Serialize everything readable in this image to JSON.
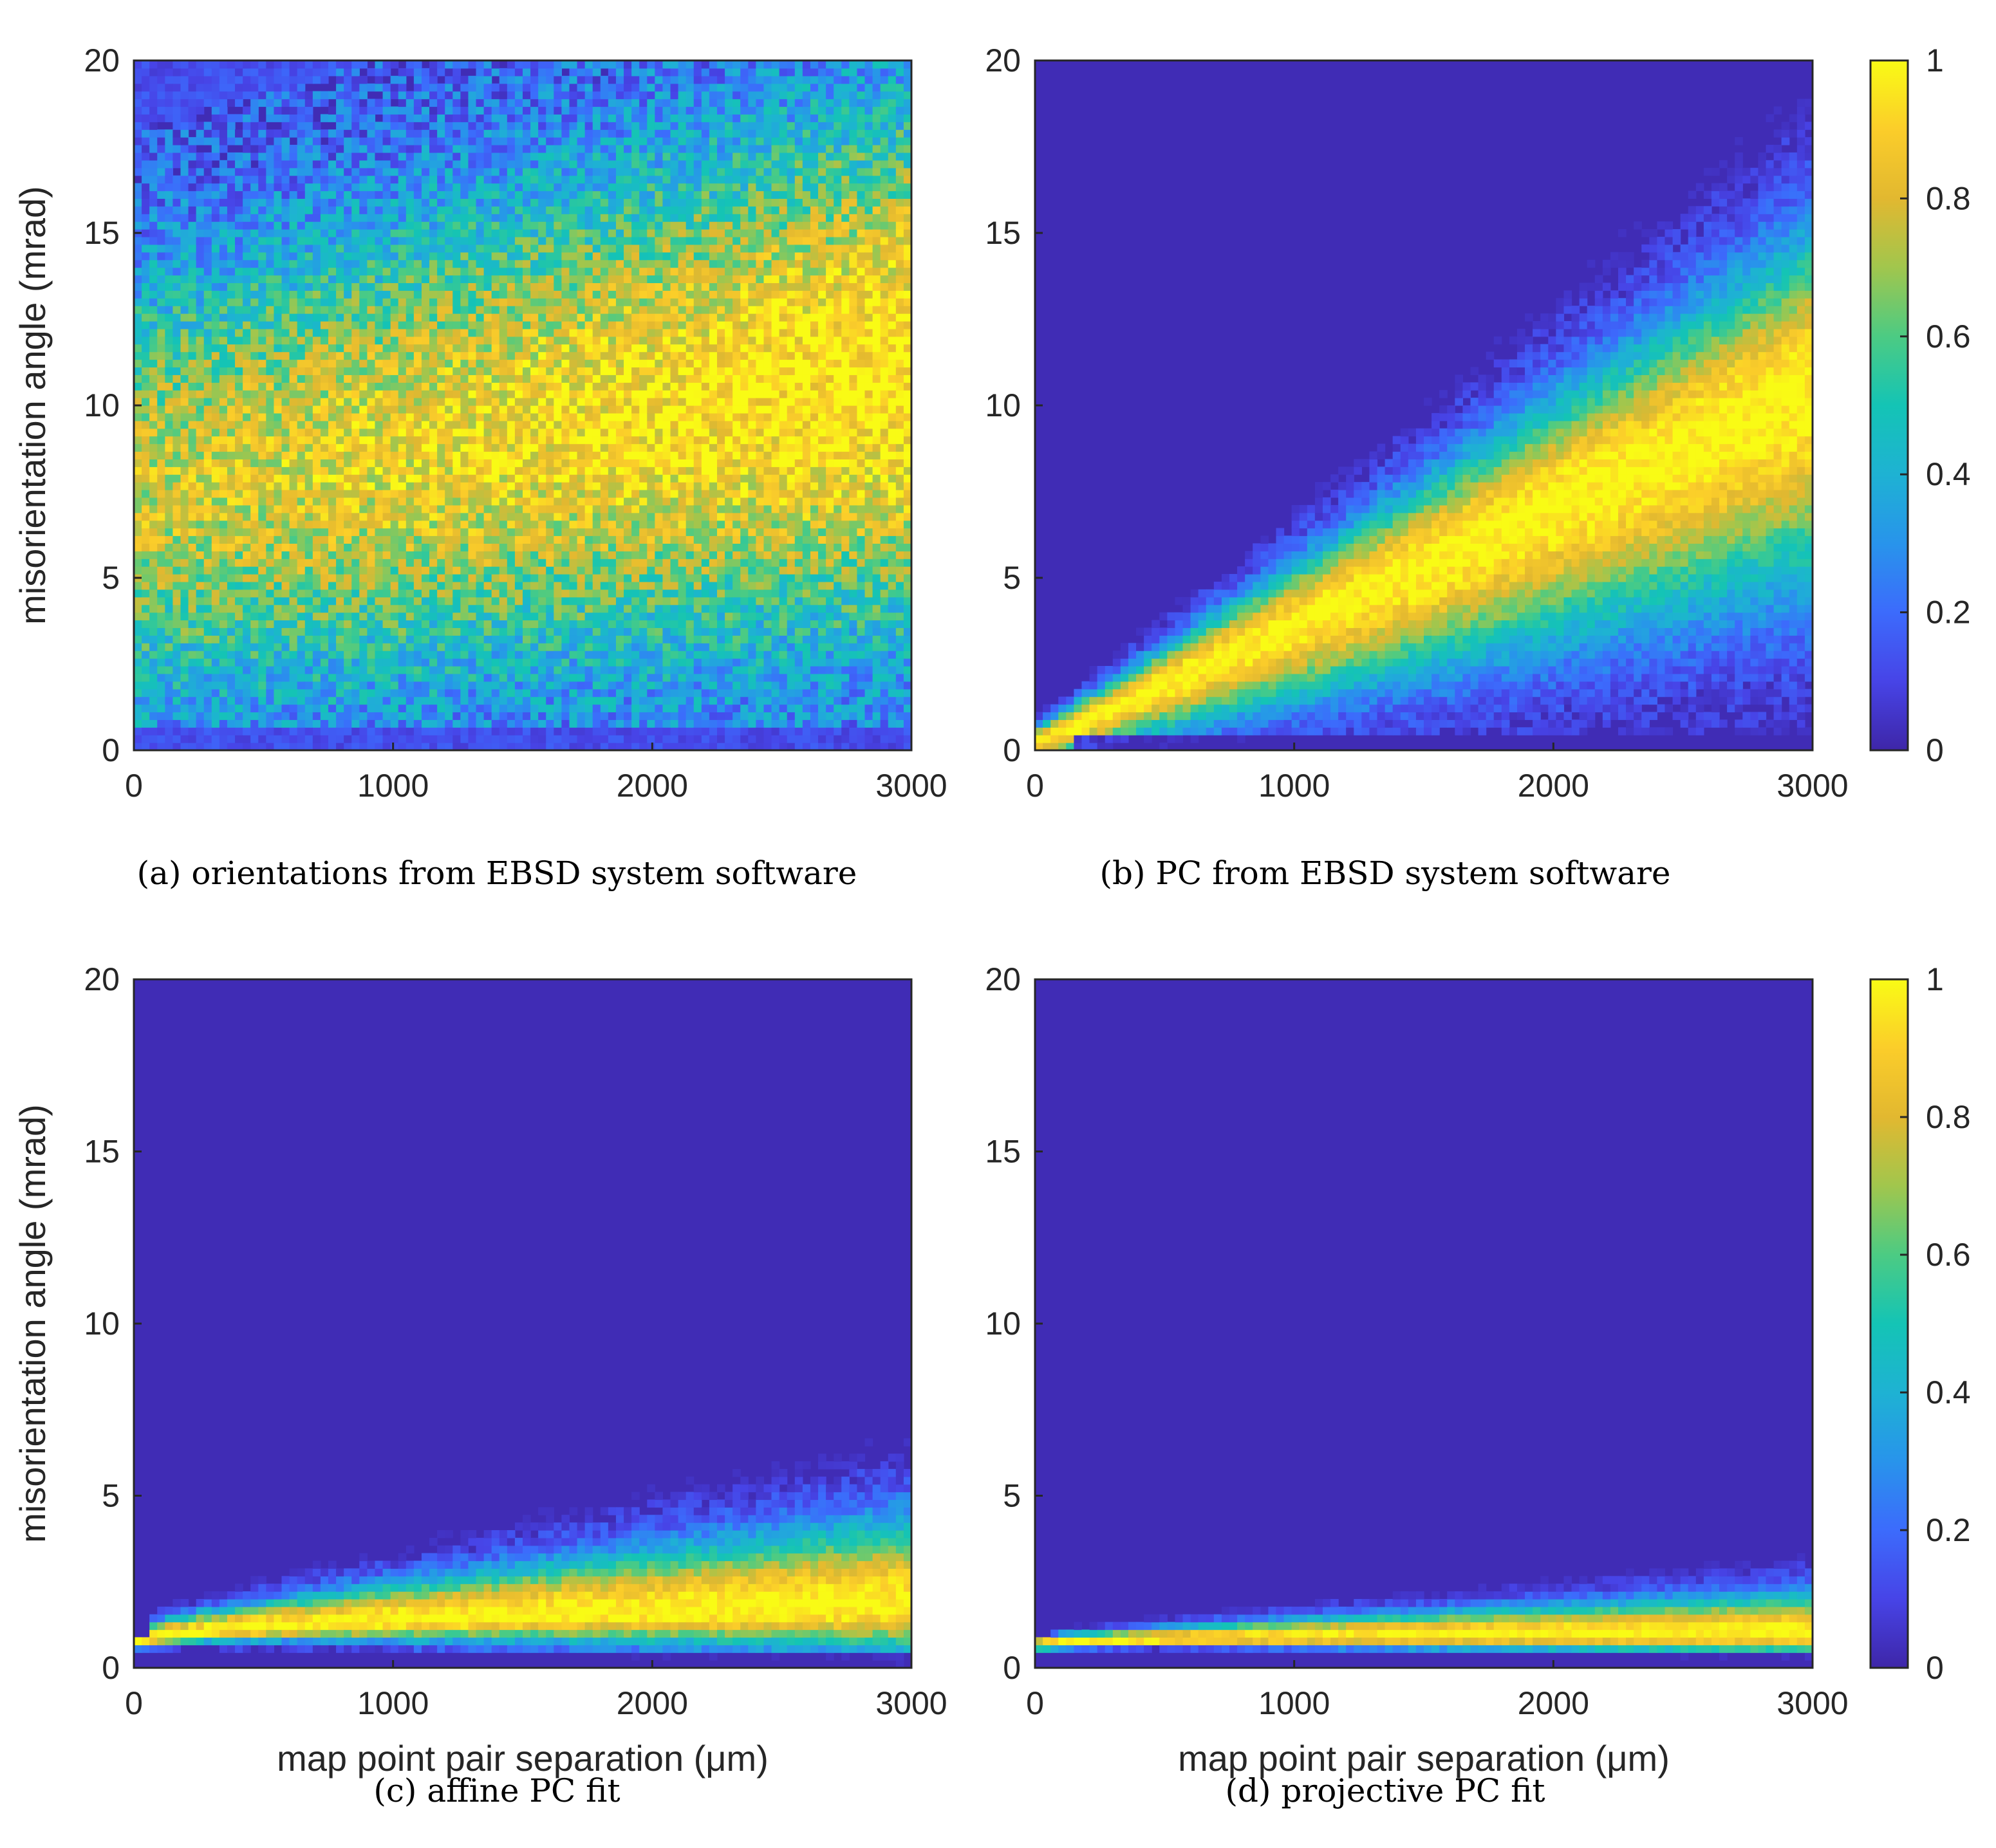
{
  "chart_data": [
    {
      "id": "a",
      "type": "heatmap",
      "caption": "(a) orientations from EBSD system software",
      "xlabel": "",
      "ylabel": "misorientation angle (mrad)",
      "xlim": [
        0,
        3000
      ],
      "ylim": [
        0,
        20
      ],
      "xticks": [
        "0",
        "1000",
        "2000",
        "3000"
      ],
      "yticks": [
        "0",
        "5",
        "10",
        "15",
        "20"
      ],
      "distribution": {
        "model": "broad",
        "center_start": 7.5,
        "center_end": 11,
        "width_start": 4.5,
        "width_end": 5.5,
        "noise": 0.2
      }
    },
    {
      "id": "b",
      "type": "heatmap",
      "caption": "(b) PC from EBSD system software",
      "xlabel": "",
      "ylabel": "",
      "xlim": [
        0,
        3000
      ],
      "ylim": [
        0,
        20
      ],
      "xticks": [
        "0",
        "1000",
        "2000",
        "3000"
      ],
      "yticks": [
        "0",
        "5",
        "10",
        "15",
        "20"
      ],
      "distribution": {
        "model": "linear_band",
        "center_start": 0.2,
        "center_end": 10.5,
        "width_start": 0.3,
        "width_end": 3.2,
        "noise": 0.08
      }
    },
    {
      "id": "c",
      "type": "heatmap",
      "caption": "(c) affine PC fit",
      "xlabel": "map point pair separation (μm)",
      "ylabel": "misorientation angle (mrad)",
      "xlim": [
        0,
        3000
      ],
      "ylim": [
        0,
        20
      ],
      "xticks": [
        "0",
        "1000",
        "2000",
        "3000"
      ],
      "yticks": [
        "0",
        "5",
        "10",
        "15",
        "20"
      ],
      "distribution": {
        "model": "saturating_band",
        "center_start": 0.1,
        "center_end": 1.8,
        "width_start": 0.2,
        "width_end": 1.3,
        "floor": 0.6,
        "noise": 0.08
      }
    },
    {
      "id": "d",
      "type": "heatmap",
      "caption": "(d) projective PC fit",
      "xlabel": "map point pair separation (μm)",
      "ylabel": "",
      "xlim": [
        0,
        3000
      ],
      "ylim": [
        0,
        20
      ],
      "xticks": [
        "0",
        "1000",
        "2000",
        "3000"
      ],
      "yticks": [
        "0",
        "5",
        "10",
        "15",
        "20"
      ],
      "distribution": {
        "model": "narrow_band",
        "center_start": 0.15,
        "center_end": 1.0,
        "width_start": 0.1,
        "width_end": 0.6,
        "floor": 0.5,
        "noise": 0.06
      }
    }
  ],
  "colorbar": {
    "colormap": "parula",
    "range": [
      0,
      1
    ],
    "ticks": [
      "0",
      "0.2",
      "0.4",
      "0.6",
      "0.8",
      "1"
    ]
  },
  "colors": {
    "parula": [
      "#3e26a8",
      "#4744e7",
      "#3c6bfc",
      "#2894eb",
      "#1eb2d3",
      "#14c4b5",
      "#4ccb83",
      "#a1c64d",
      "#e2b830",
      "#fbcd2a",
      "#f9fb15"
    ]
  }
}
